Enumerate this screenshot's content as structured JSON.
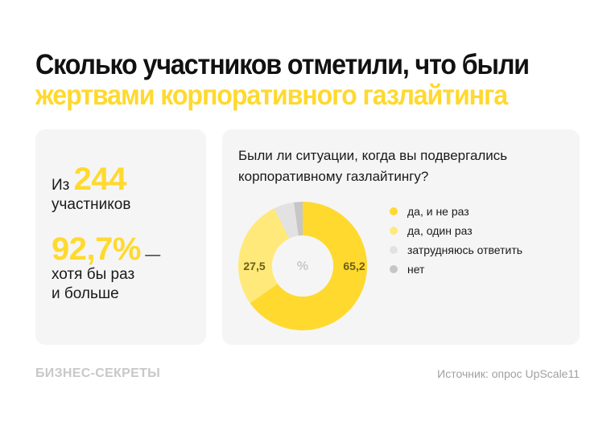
{
  "title": {
    "line1": "Сколько участников отметили, что были",
    "line2": "жертвами корпоративного газлайтинга"
  },
  "left_card": {
    "prefix": "Из",
    "total": "244",
    "total_label": "участников",
    "percent": "92,7%",
    "dash": "—",
    "percent_label_line1": "хотя бы раз",
    "percent_label_line2": "и больше"
  },
  "right_card": {
    "question": "Были ли ситуации, когда вы подвергались корпоративному газлайтингу?",
    "center_label": "%"
  },
  "colors": {
    "accent": "#ffd92e",
    "light_yellow": "#ffe97a",
    "light_gray": "#e2e2e2",
    "mid_gray": "#c6c6c6",
    "label_dark": "#6b5e1a"
  },
  "chart_data": {
    "type": "pie",
    "subtype": "donut",
    "title": "Были ли ситуации, когда вы подвергались корпоративному газлайтингу?",
    "center_label": "%",
    "categories": [
      "да, и не раз",
      "да, один раз",
      "затрудняюсь ответить",
      "нет"
    ],
    "values": [
      65.2,
      27.5,
      5.1,
      2.2
    ],
    "data_labels": [
      "65,2",
      "27,5",
      "",
      ""
    ],
    "colors": [
      "#ffd92e",
      "#ffe97a",
      "#e2e2e2",
      "#c6c6c6"
    ],
    "legend_position": "right"
  },
  "legend": [
    {
      "label": "да, и не раз",
      "color": "#ffd92e"
    },
    {
      "label": "да, один раз",
      "color": "#ffe97a"
    },
    {
      "label": "затрудняюсь ответить",
      "color": "#e2e2e2"
    },
    {
      "label": "нет",
      "color": "#c6c6c6"
    }
  ],
  "footer": {
    "brand": "БИЗНЕС-СЕКРЕТЫ",
    "source": "Источник: опрос UpScale11"
  }
}
